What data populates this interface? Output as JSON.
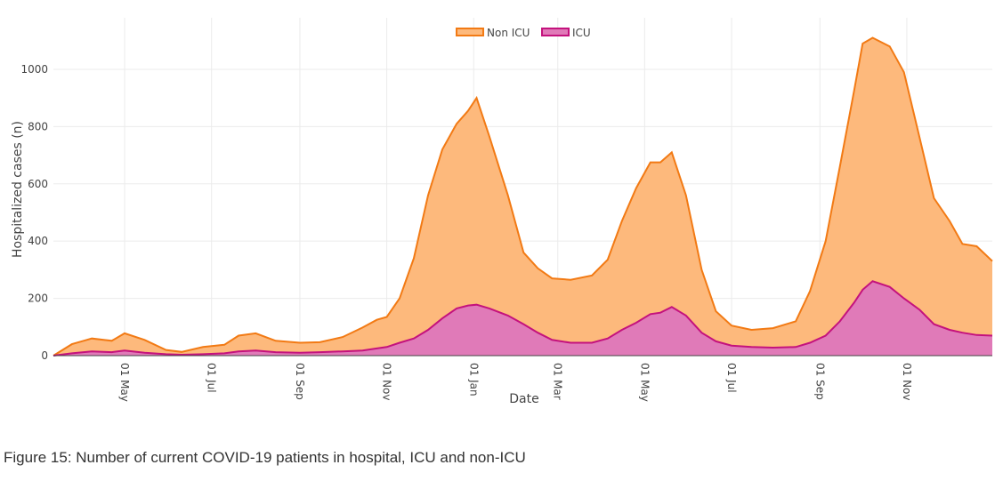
{
  "caption": "Figure 15: Number of current COVID-19 patients in hospital, ICU and non-ICU",
  "colors": {
    "non_icu_fill": "#fdb97c",
    "non_icu_line": "#f27a14",
    "icu_fill": "#e07ab8",
    "icu_line": "#c4127d",
    "grid": "#ebebeb",
    "axis": "#444444"
  },
  "chart_data": {
    "type": "area",
    "stacked": true,
    "title": "",
    "xlabel": "Date",
    "ylabel": "Hospitalized cases (n)",
    "ylim": [
      0,
      1180
    ],
    "yticks": [
      0,
      200,
      400,
      600,
      800,
      1000
    ],
    "xlim": [
      "2020-03-12",
      "2021-12-31"
    ],
    "x_ticks": [
      {
        "date": "2020-05-01",
        "label": "01 May"
      },
      {
        "date": "2020-07-01",
        "label": "01 Jul"
      },
      {
        "date": "2020-09-01",
        "label": "01 Sep"
      },
      {
        "date": "2020-11-01",
        "label": "01 Nov"
      },
      {
        "date": "2021-01-01",
        "label": "01 Jan"
      },
      {
        "date": "2021-03-01",
        "label": "01 Mar"
      },
      {
        "date": "2021-05-01",
        "label": "01 May"
      },
      {
        "date": "2021-07-01",
        "label": "01 Jul"
      },
      {
        "date": "2021-09-01",
        "label": "01 Sep"
      },
      {
        "date": "2021-11-01",
        "label": "01 Nov"
      }
    ],
    "legend": {
      "position": "top-center",
      "entries": [
        "Non ICU",
        "ICU"
      ]
    },
    "x": [
      "2020-03-12",
      "2020-03-25",
      "2020-04-08",
      "2020-04-22",
      "2020-05-01",
      "2020-05-15",
      "2020-05-30",
      "2020-06-10",
      "2020-06-25",
      "2020-07-10",
      "2020-07-20",
      "2020-08-01",
      "2020-08-15",
      "2020-09-01",
      "2020-09-15",
      "2020-10-01",
      "2020-10-15",
      "2020-10-25",
      "2020-11-01",
      "2020-11-10",
      "2020-11-20",
      "2020-11-30",
      "2020-12-10",
      "2020-12-20",
      "2020-12-28",
      "2021-01-03",
      "2021-01-12",
      "2021-01-25",
      "2021-02-05",
      "2021-02-15",
      "2021-02-25",
      "2021-03-10",
      "2021-03-25",
      "2021-04-05",
      "2021-04-15",
      "2021-04-25",
      "2021-05-05",
      "2021-05-12",
      "2021-05-20",
      "2021-05-30",
      "2021-06-10",
      "2021-06-20",
      "2021-07-01",
      "2021-07-15",
      "2021-07-30",
      "2021-08-15",
      "2021-08-25",
      "2021-09-05",
      "2021-09-15",
      "2021-09-25",
      "2021-10-01",
      "2021-10-08",
      "2021-10-20",
      "2021-10-30",
      "2021-11-10",
      "2021-11-20",
      "2021-12-01",
      "2021-12-10",
      "2021-12-20",
      "2021-12-31"
    ],
    "series": [
      {
        "name": "ICU",
        "values": [
          0,
          8,
          15,
          12,
          18,
          10,
          5,
          3,
          5,
          8,
          15,
          18,
          12,
          10,
          12,
          15,
          18,
          25,
          30,
          45,
          60,
          90,
          130,
          165,
          175,
          178,
          165,
          140,
          110,
          80,
          55,
          45,
          45,
          60,
          90,
          115,
          145,
          150,
          170,
          140,
          80,
          50,
          35,
          30,
          28,
          30,
          45,
          70,
          120,
          185,
          230,
          260,
          240,
          200,
          160,
          110,
          90,
          80,
          72,
          70
        ]
      },
      {
        "name": "Non ICU",
        "values": [
          0,
          32,
          45,
          40,
          60,
          45,
          15,
          10,
          25,
          30,
          55,
          60,
          40,
          35,
          35,
          50,
          80,
          100,
          105,
          155,
          280,
          470,
          590,
          645,
          680,
          722,
          600,
          420,
          250,
          225,
          215,
          220,
          235,
          275,
          380,
          470,
          530,
          525,
          540,
          420,
          220,
          105,
          70,
          60,
          68,
          90,
          180,
          330,
          540,
          740,
          860,
          850,
          840,
          790,
          600,
          440,
          380,
          310,
          310,
          260
        ]
      }
    ]
  }
}
